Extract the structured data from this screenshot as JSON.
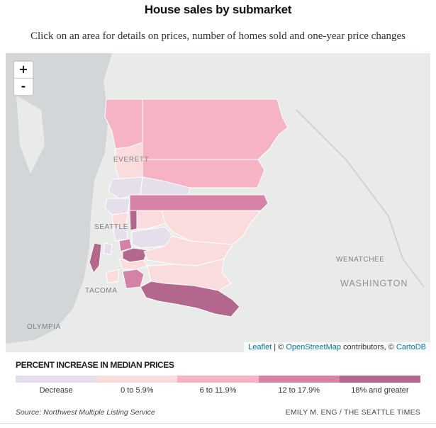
{
  "header": {
    "title": "House sales by submarket",
    "subtitle": "Click on an area for details on prices, number of homes sold and one-year price changes"
  },
  "map": {
    "zoom_in_label": "+",
    "zoom_out_label": "-",
    "place_labels": {
      "everett": "EVERETT",
      "seattle": "SEATTLE",
      "tacoma": "TACOMA",
      "olympia": "OLYMPIA",
      "wenatchee": "WENATCHEE",
      "washington": "WASHINGTON"
    },
    "attribution": {
      "leaflet": "Leaflet",
      "separator": " | © ",
      "osm": "OpenStreetMap",
      "contributors": " contributors, © ",
      "carto": "CartoDB"
    }
  },
  "legend": {
    "title": "PERCENT INCREASE IN MEDIAN PRICES",
    "bins": [
      {
        "label": "Decrease",
        "color": "#e4dfeb"
      },
      {
        "label": "0 to 5.9%",
        "color": "#fbdcdc"
      },
      {
        "label": "6 to 11.9%",
        "color": "#f5b3c4"
      },
      {
        "label": "12 to 17.9%",
        "color": "#d682a7"
      },
      {
        "label": "18% and greater",
        "color": "#b4678d"
      }
    ]
  },
  "footer": {
    "source": "Source: Northwest Multiple Listing Service",
    "credit": "EMILY M. ENG / THE SEATTLE TIMES"
  }
}
